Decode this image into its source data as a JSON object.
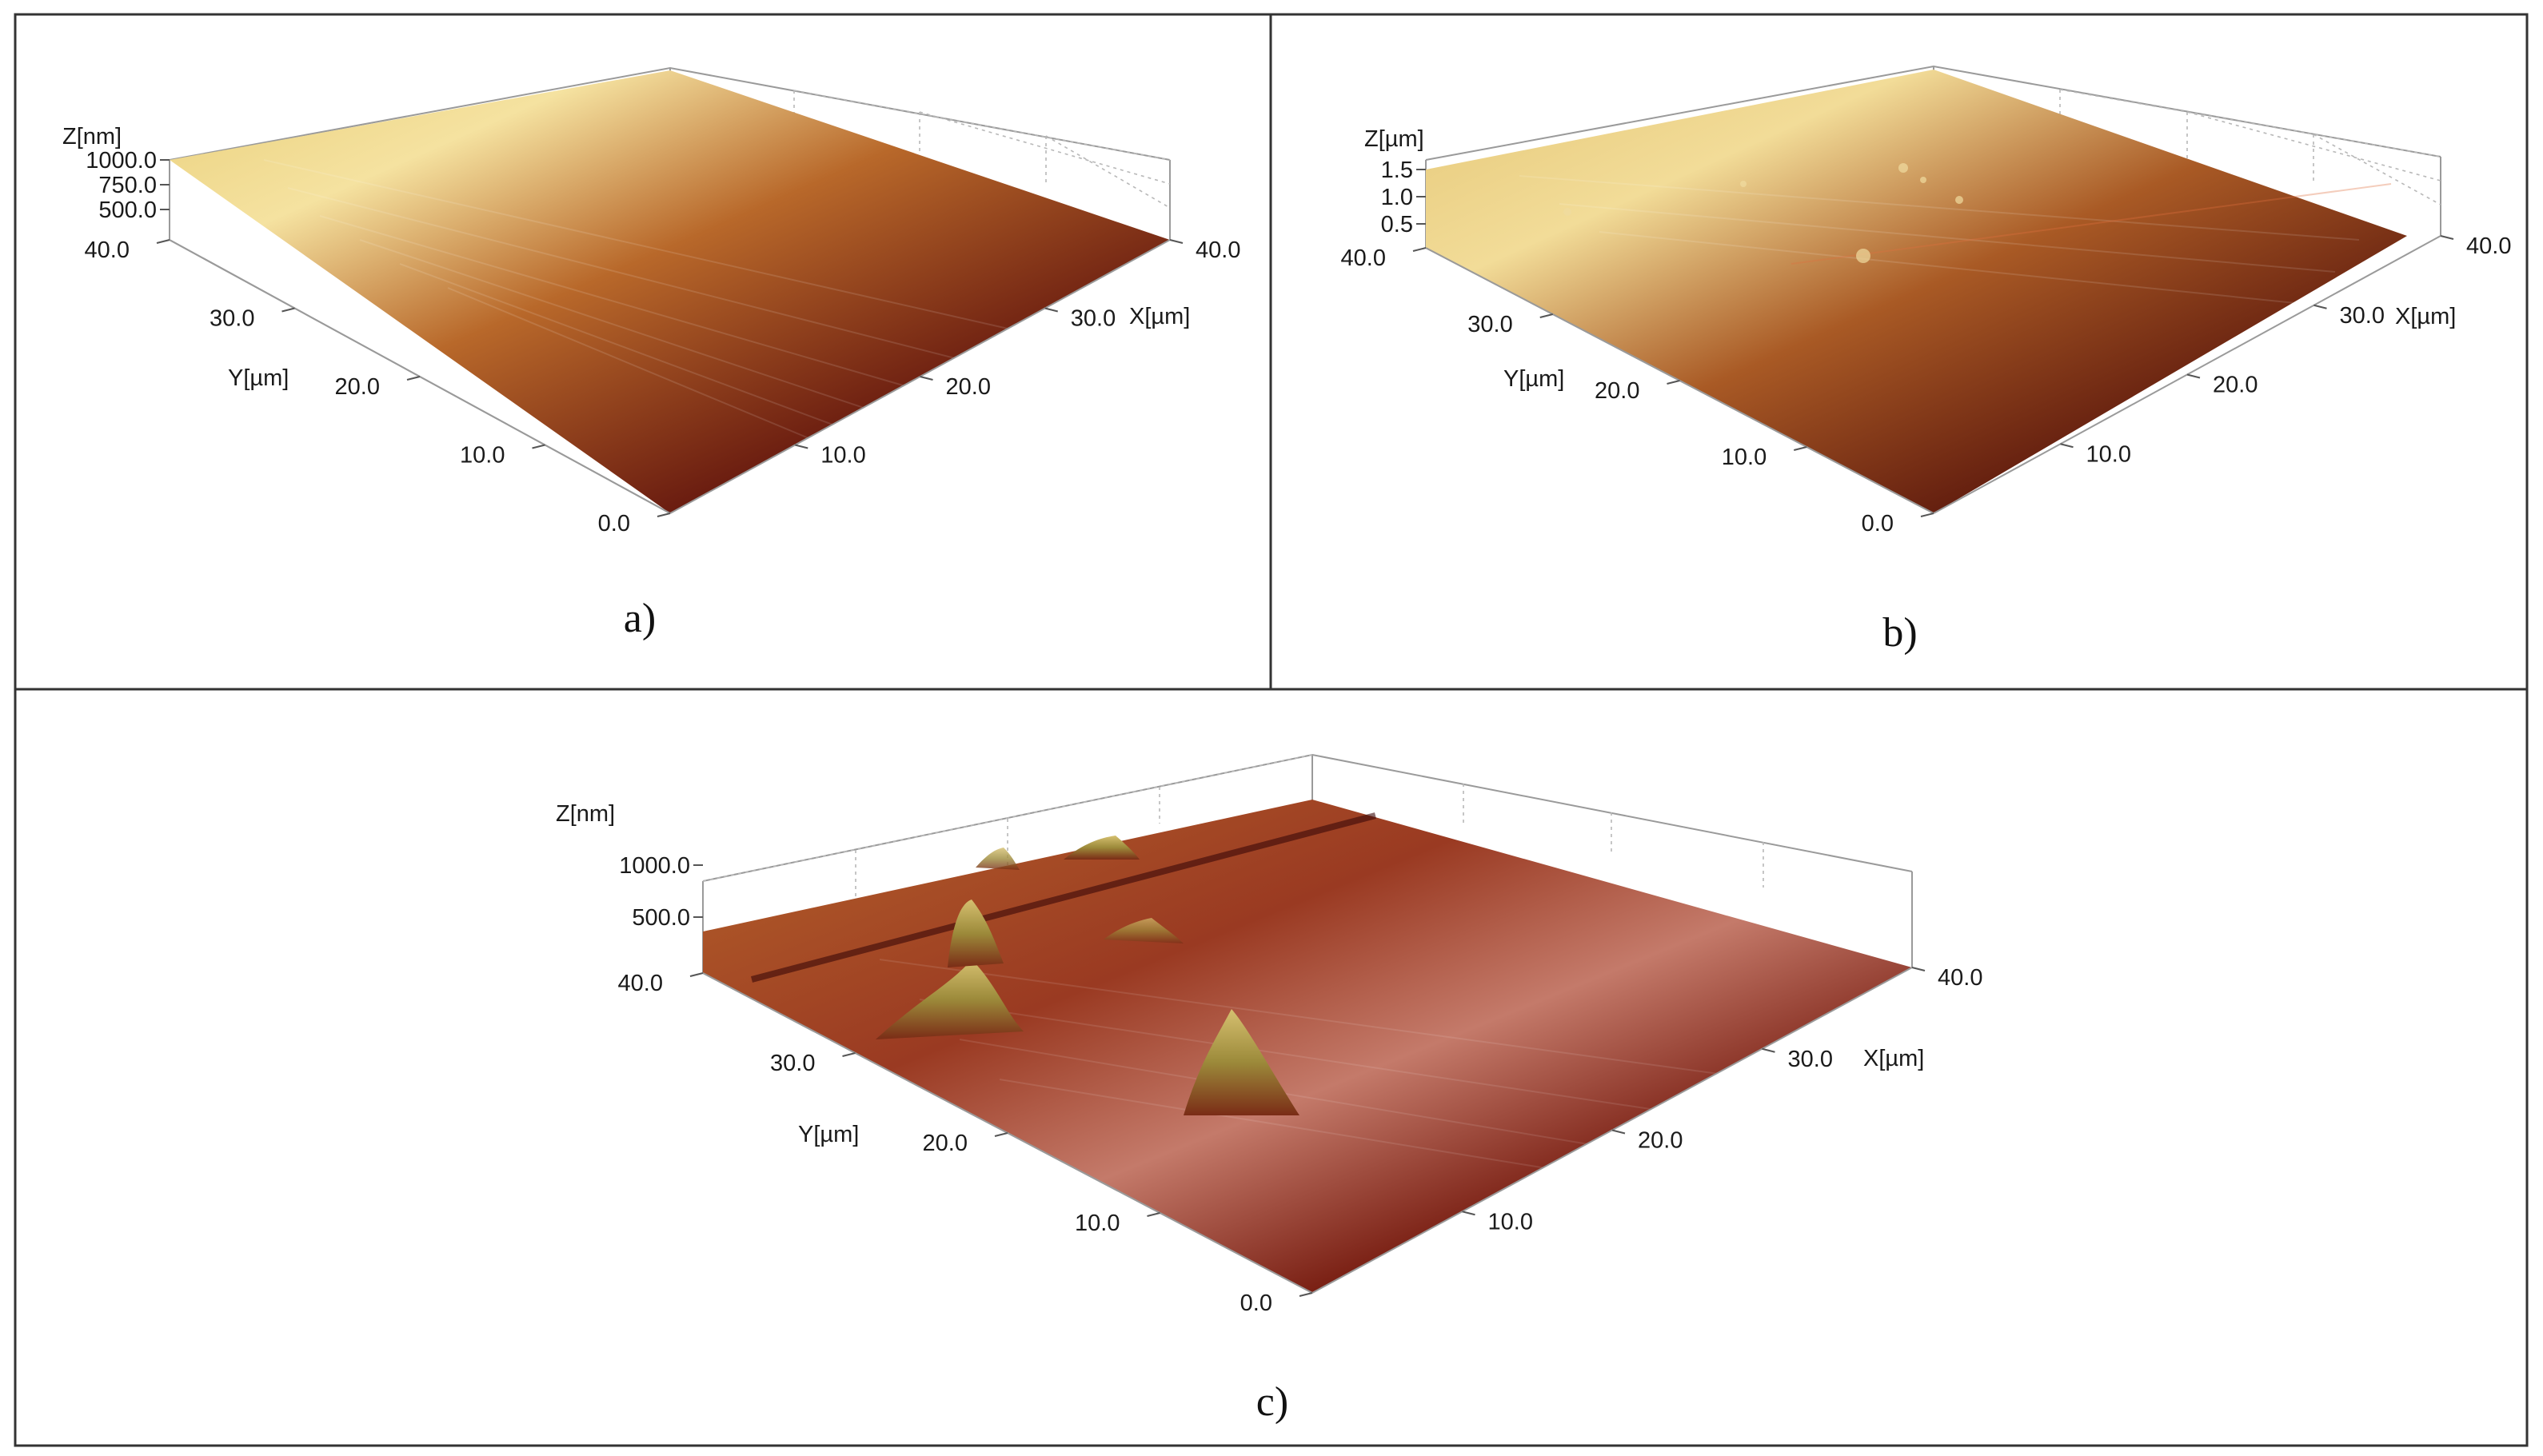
{
  "chart_data": [
    {
      "type": "surface3d",
      "caption": "a)",
      "xlabel": "X[µm]",
      "ylabel": "Y[µm]",
      "zlabel": "Z[nm]",
      "x_ticks": [
        "10.0",
        "20.0",
        "30.0",
        "40.0"
      ],
      "y_ticks": [
        "0.0",
        "10.0",
        "20.0",
        "30.0",
        "40.0"
      ],
      "z_ticks": [
        "500.0",
        "750.0",
        "1000.0"
      ],
      "xlim": [
        0,
        40
      ],
      "ylim": [
        0,
        40
      ],
      "zlim": [
        0,
        1000
      ],
      "colormap": [
        "#2a0606",
        "#6b1a10",
        "#a8501e",
        "#d9a040",
        "#f3dc8a"
      ]
    },
    {
      "type": "surface3d",
      "caption": "b)",
      "xlabel": "X[µm]",
      "ylabel": "Y[µm]",
      "zlabel": "Z[µm]",
      "x_ticks": [
        "10.0",
        "20.0",
        "30.0",
        "40.0"
      ],
      "y_ticks": [
        "0.0",
        "10.0",
        "20.0",
        "30.0",
        "40.0"
      ],
      "z_ticks": [
        "0.5",
        "1.0",
        "1.5"
      ],
      "xlim": [
        0,
        40
      ],
      "ylim": [
        0,
        40
      ],
      "zlim": [
        0,
        1.5
      ],
      "colormap": [
        "#2a0606",
        "#6b1a10",
        "#a8501e",
        "#d9a040",
        "#f3dc8a"
      ]
    },
    {
      "type": "surface3d",
      "caption": "c)",
      "xlabel": "X[µm]",
      "ylabel": "Y[µm]",
      "zlabel": "Z[nm]",
      "x_ticks": [
        "10.0",
        "20.0",
        "30.0",
        "40.0"
      ],
      "y_ticks": [
        "0.0",
        "10.0",
        "20.0",
        "30.0",
        "40.0"
      ],
      "z_ticks": [
        "500.0",
        "1000.0"
      ],
      "xlim": [
        0,
        40
      ],
      "ylim": [
        0,
        40
      ],
      "zlim": [
        0,
        1000
      ],
      "colormap": [
        "#2a0606",
        "#6b1a10",
        "#a8501e",
        "#d9a040",
        "#f3dc8a"
      ]
    }
  ]
}
